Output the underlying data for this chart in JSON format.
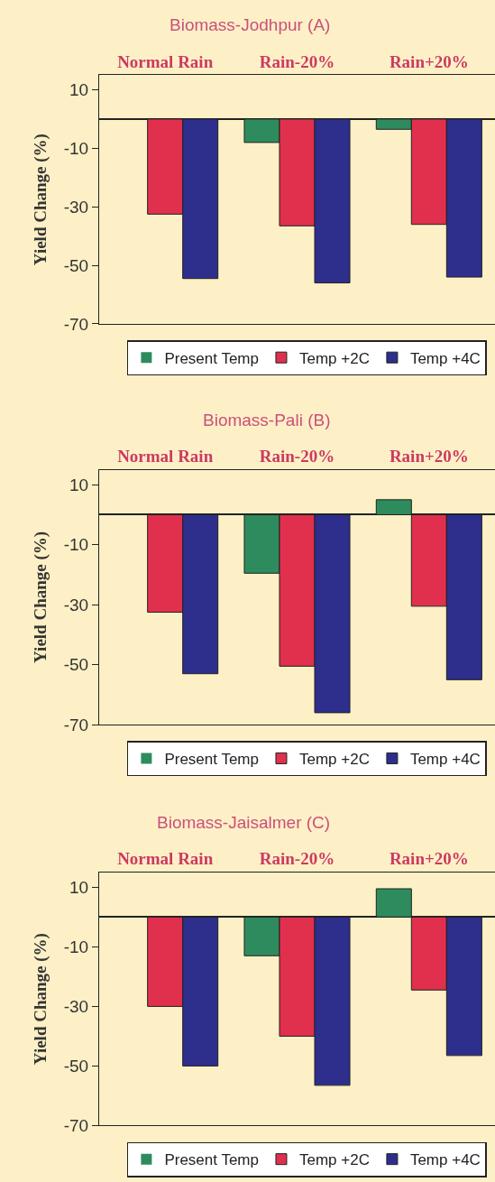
{
  "chart_data": [
    {
      "type": "bar",
      "title": "Biomass-Jodhpur (A)",
      "categories": [
        "Normal Rain",
        "Rain-20%",
        "Rain+20%"
      ],
      "ylabel": "Yield Change (%)",
      "ylim": [
        -70,
        15
      ],
      "yticks": [
        10,
        -10,
        -30,
        -50,
        -70
      ],
      "grid": false,
      "legend": "bottom",
      "series": [
        {
          "name": "Present Temp",
          "color": "#2e8b5e",
          "values": [
            0,
            -8,
            -3.5
          ]
        },
        {
          "name": "Temp +2C",
          "color": "#e0304e",
          "values": [
            -32.5,
            -36.5,
            -36
          ]
        },
        {
          "name": "Temp +4C",
          "color": "#2e2e8c",
          "values": [
            -54.5,
            -56,
            -54
          ]
        }
      ]
    },
    {
      "type": "bar",
      "title": "Biomass-Pali (B)",
      "categories": [
        "Normal Rain",
        "Rain-20%",
        "Rain+20%"
      ],
      "ylabel": "Yield Change (%)",
      "ylim": [
        -70,
        15
      ],
      "yticks": [
        10,
        -10,
        -30,
        -50,
        -70
      ],
      "grid": false,
      "legend": "bottom",
      "series": [
        {
          "name": "Present Temp",
          "color": "#2e8b5e",
          "values": [
            0,
            -19.5,
            5
          ]
        },
        {
          "name": "Temp +2C",
          "color": "#e0304e",
          "values": [
            -32.5,
            -50.5,
            -30.5
          ]
        },
        {
          "name": "Temp +4C",
          "color": "#2e2e8c",
          "values": [
            -53,
            -66,
            -55
          ]
        }
      ]
    },
    {
      "type": "bar",
      "title": "Biomass-Jaisalmer (C)",
      "categories": [
        "Normal Rain",
        "Rain-20%",
        "Rain+20%"
      ],
      "ylabel": "Yield Change (%)",
      "ylim": [
        -70,
        15
      ],
      "yticks": [
        10,
        -10,
        -30,
        -50,
        -70
      ],
      "grid": false,
      "legend": "bottom",
      "series": [
        {
          "name": "Present Temp",
          "color": "#2e8b5e",
          "values": [
            0,
            -13,
            9.5
          ]
        },
        {
          "name": "Temp +2C",
          "color": "#e0304e",
          "values": [
            -30,
            -40,
            -24.5
          ]
        },
        {
          "name": "Temp +4C",
          "color": "#2e2e8c",
          "values": [
            -50,
            -56.5,
            -46.5
          ]
        }
      ]
    }
  ]
}
